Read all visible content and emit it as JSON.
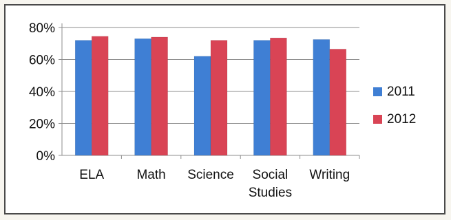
{
  "chart_data": {
    "type": "bar",
    "categories": [
      [
        "ELA"
      ],
      [
        "Math"
      ],
      [
        "Science"
      ],
      [
        "Social",
        "Studies"
      ],
      [
        "Writing"
      ]
    ],
    "series": [
      {
        "name": "2011",
        "color": "#3f7fd4",
        "values": [
          72,
          73,
          62,
          72,
          72.5
        ]
      },
      {
        "name": "2012",
        "color": "#d94455",
        "values": [
          74.5,
          74,
          72,
          73.5,
          66.5
        ]
      }
    ],
    "yticks": [
      "0%",
      "20%",
      "40%",
      "60%",
      "80%"
    ],
    "ylim": [
      0,
      80
    ],
    "grid": true,
    "legend": "right",
    "title": "",
    "xlabel": "",
    "ylabel": ""
  }
}
